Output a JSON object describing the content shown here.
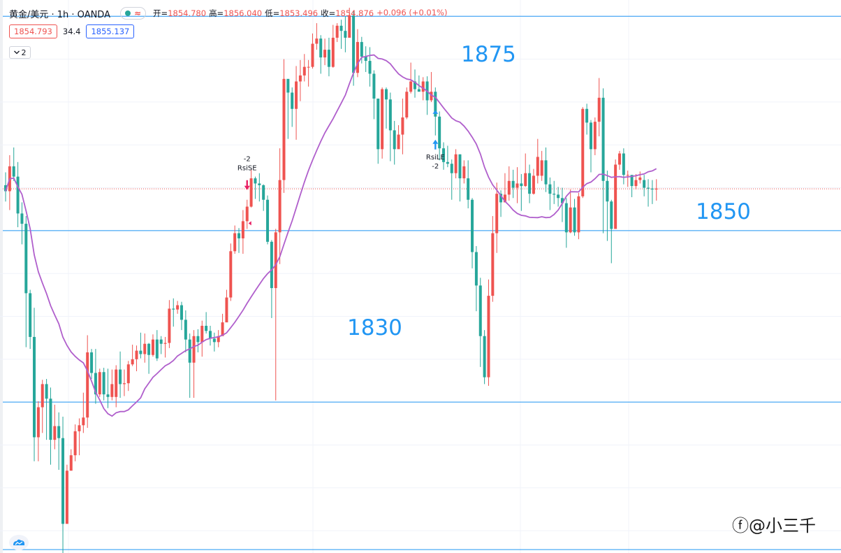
{
  "header": {
    "symbol": "黄金/美元 · 1h · OANDA",
    "status_icon": "wave-icon",
    "open_label": "开=",
    "open": "1854.780",
    "high_label": "高=",
    "high": "1856.040",
    "low_label": "低=",
    "low": "1853.496",
    "close_label": "收=",
    "close": "1854.876",
    "change": "+0.096 (+0.01%)"
  },
  "prices": {
    "sell": "1854.793",
    "spread": "34.4",
    "buy": "1855.137"
  },
  "collapse_count": "2",
  "levels": {
    "l1875": "1875",
    "l1850": "1850",
    "l1830": "1830"
  },
  "watermark": "@小三千",
  "colors": {
    "up": "#ef5350",
    "down": "#26a69a",
    "ma": "#b05fcc",
    "level": "#2196f3"
  },
  "chart_data": {
    "type": "candlestick",
    "ylim": [
      1812.4,
      1876.9
    ],
    "horizontal_levels": [
      1875,
      1850,
      1830
    ],
    "current_price_line": 1854.876,
    "annotations": [
      {
        "text": "-2",
        "text2": "RsiSE",
        "index": 59,
        "direction": "down"
      },
      {
        "text": "RsiLE",
        "text2": "-2",
        "index": 105,
        "direction": "up"
      }
    ],
    "candles": [
      [
        1855.3,
        1854.6,
        1856.8,
        1853.4
      ],
      [
        1854.6,
        1857.5,
        1858.8,
        1852.4
      ],
      [
        1857.5,
        1856.3,
        1859.7,
        1855.8
      ],
      [
        1856.3,
        1852.0,
        1858.0,
        1850.4
      ],
      [
        1852.0,
        1850.8,
        1853.3,
        1848.4
      ],
      [
        1850.8,
        1842.7,
        1851.7,
        1836.4
      ],
      [
        1842.7,
        1837.6,
        1843.1,
        1836.2
      ],
      [
        1837.6,
        1825.9,
        1841.0,
        1823.1
      ],
      [
        1825.9,
        1829.4,
        1830.1,
        1823.1
      ],
      [
        1829.4,
        1832.1,
        1832.6,
        1826.4
      ],
      [
        1832.1,
        1830.4,
        1832.7,
        1825.6
      ],
      [
        1830.4,
        1825.6,
        1831.7,
        1822.7
      ],
      [
        1825.6,
        1827.2,
        1829.7,
        1824.5
      ],
      [
        1827.2,
        1825.8,
        1828.8,
        1822.1
      ],
      [
        1825.8,
        1815.8,
        1828.3,
        1811.0
      ],
      [
        1815.8,
        1822.0,
        1822.7,
        1816.0
      ],
      [
        1822.0,
        1823.8,
        1824.5,
        1822.3
      ],
      [
        1823.8,
        1826.6,
        1827.4,
        1823.1
      ],
      [
        1826.6,
        1827.3,
        1828.1,
        1823.8
      ],
      [
        1827.3,
        1828.2,
        1831.1,
        1826.4
      ],
      [
        1828.2,
        1835.8,
        1837.8,
        1827.0
      ],
      [
        1835.8,
        1833.4,
        1836.2,
        1832.7
      ],
      [
        1833.4,
        1830.9,
        1836.2,
        1829.8
      ],
      [
        1830.9,
        1833.5,
        1833.9,
        1830.6
      ],
      [
        1833.5,
        1830.9,
        1834.0,
        1830.2
      ],
      [
        1830.9,
        1830.6,
        1833.9,
        1829.3
      ],
      [
        1830.6,
        1832.1,
        1833.8,
        1830.2
      ],
      [
        1830.6,
        1833.8,
        1834.3,
        1829.4
      ],
      [
        1833.8,
        1832.1,
        1835.9,
        1830.5
      ],
      [
        1832.1,
        1832.2,
        1833.8,
        1830.7
      ],
      [
        1832.2,
        1834.4,
        1834.8,
        1831.3
      ],
      [
        1834.4,
        1835.0,
        1836.7,
        1834.2
      ],
      [
        1835.0,
        1836.0,
        1836.6,
        1833.6
      ],
      [
        1836.0,
        1835.6,
        1838.1,
        1835.1
      ],
      [
        1835.6,
        1836.8,
        1838.0,
        1834.6
      ],
      [
        1836.8,
        1835.5,
        1836.9,
        1833.3
      ],
      [
        1835.5,
        1837.3,
        1837.9,
        1835.3
      ],
      [
        1837.3,
        1835.1,
        1838.4,
        1834.8
      ],
      [
        1837.3,
        1836.8,
        1837.7,
        1835.6
      ],
      [
        1836.8,
        1836.9,
        1837.6,
        1835.2
      ],
      [
        1836.9,
        1840.9,
        1841.9,
        1836.3
      ],
      [
        1840.9,
        1840.8,
        1842.1,
        1838.8
      ],
      [
        1840.8,
        1841.3,
        1841.8,
        1840.3
      ],
      [
        1841.3,
        1839.6,
        1841.7,
        1838.4
      ],
      [
        1839.6,
        1837.3,
        1840.7,
        1835.8
      ],
      [
        1837.3,
        1834.6,
        1838.0,
        1830.5
      ],
      [
        1834.6,
        1837.7,
        1838.4,
        1830.5
      ],
      [
        1837.7,
        1837.0,
        1838.5,
        1835.8
      ],
      [
        1837.0,
        1838.9,
        1839.5,
        1835.3
      ],
      [
        1838.9,
        1838.3,
        1840.5,
        1838.0
      ],
      [
        1838.3,
        1837.4,
        1838.9,
        1836.6
      ],
      [
        1837.4,
        1837.0,
        1838.1,
        1835.9
      ],
      [
        1837.0,
        1837.7,
        1838.4,
        1836.4
      ],
      [
        1837.7,
        1839.3,
        1840.3,
        1839.0
      ],
      [
        1839.3,
        1842.2,
        1843.1,
        1839.6
      ],
      [
        1842.2,
        1847.6,
        1848.5,
        1841.8
      ],
      [
        1847.6,
        1849.7,
        1850.6,
        1847.3
      ],
      [
        1849.7,
        1849.1,
        1850.3,
        1847.4
      ],
      [
        1849.1,
        1851.1,
        1852.4,
        1847.3
      ],
      [
        1851.1,
        1852.8,
        1853.6,
        1850.2
      ],
      [
        1852.8,
        1856.1,
        1857.1,
        1852.7
      ],
      [
        1856.1,
        1855.5,
        1856.3,
        1853.7
      ],
      [
        1855.5,
        1855.3,
        1856.7,
        1853.4
      ],
      [
        1855.3,
        1853.6,
        1855.4,
        1852.3
      ],
      [
        1853.6,
        1848.7,
        1854.1,
        1848.4
      ],
      [
        1848.7,
        1843.3,
        1848.9,
        1839.8
      ],
      [
        1843.3,
        1849.8,
        1850.2,
        1830.2
      ],
      [
        1849.8,
        1855.9,
        1859.6,
        1846.1
      ],
      [
        1855.9,
        1867.7,
        1870.0,
        1854.4
      ],
      [
        1867.7,
        1866.1,
        1867.1,
        1860.7
      ],
      [
        1866.1,
        1864.2,
        1866.7,
        1862.1
      ],
      [
        1864.2,
        1867.4,
        1869.2,
        1860.6
      ],
      [
        1867.4,
        1868.1,
        1869.9,
        1865.1
      ],
      [
        1868.1,
        1869.1,
        1870.6,
        1867.4
      ],
      [
        1869.1,
        1869.1,
        1869.9,
        1866.8
      ],
      [
        1869.1,
        1871.8,
        1873.0,
        1868.9
      ],
      [
        1871.8,
        1872.4,
        1874.2,
        1871.1
      ],
      [
        1872.4,
        1870.2,
        1872.8,
        1868.3
      ],
      [
        1870.2,
        1871.1,
        1872.4,
        1869.3
      ],
      [
        1871.1,
        1869.1,
        1872.5,
        1868.0
      ],
      [
        1869.1,
        1872.5,
        1874.0,
        1869.0
      ],
      [
        1872.5,
        1873.9,
        1874.2,
        1872.0
      ],
      [
        1873.9,
        1873.3,
        1874.6,
        1871.2
      ],
      [
        1873.3,
        1872.5,
        1875.0,
        1870.8
      ],
      [
        1872.5,
        1875.1,
        1876.0,
        1872.5
      ],
      [
        1875.1,
        1868.4,
        1875.6,
        1866.9
      ],
      [
        1868.4,
        1872.0,
        1873.5,
        1867.9
      ],
      [
        1872.0,
        1870.3,
        1872.6,
        1869.5
      ],
      [
        1870.3,
        1869.8,
        1871.5,
        1868.5
      ],
      [
        1869.8,
        1868.3,
        1871.4,
        1866.8
      ],
      [
        1868.3,
        1865.4,
        1868.7,
        1863.0
      ],
      [
        1865.4,
        1859.5,
        1865.2,
        1857.8
      ],
      [
        1859.5,
        1866.5,
        1866.7,
        1858.4
      ],
      [
        1866.5,
        1865.3,
        1866.7,
        1861.9
      ],
      [
        1865.3,
        1861.7,
        1866.1,
        1858.1
      ],
      [
        1861.7,
        1859.5,
        1862.8,
        1857.7
      ],
      [
        1859.5,
        1861.2,
        1862.3,
        1859.6
      ],
      [
        1861.2,
        1863.2,
        1865.4,
        1858.9
      ],
      [
        1863.2,
        1866.2,
        1866.7,
        1863.0
      ],
      [
        1866.2,
        1867.4,
        1869.6,
        1866.0
      ],
      [
        1867.4,
        1866.5,
        1868.8,
        1865.5
      ],
      [
        1866.5,
        1866.2,
        1868.1,
        1866.5
      ],
      [
        1866.2,
        1867.4,
        1867.9,
        1865.2
      ],
      [
        1867.4,
        1865.2,
        1868.0,
        1863.5
      ],
      [
        1865.2,
        1866.2,
        1868.5,
        1865.0
      ],
      [
        1866.2,
        1863.3,
        1866.7,
        1861.1
      ],
      [
        1863.3,
        1859.6,
        1863.9,
        1858.2
      ],
      [
        1859.6,
        1858.0,
        1860.3,
        1857.1
      ],
      [
        1858.0,
        1857.8,
        1859.9,
        1857.4
      ],
      [
        1857.8,
        1856.7,
        1858.3,
        1853.6
      ],
      [
        1856.7,
        1858.9,
        1859.5,
        1856.1
      ],
      [
        1858.9,
        1856.1,
        1858.9,
        1853.4
      ],
      [
        1856.1,
        1857.5,
        1858.2,
        1855.5
      ],
      [
        1856.1,
        1853.6,
        1858.2,
        1852.6
      ],
      [
        1853.6,
        1847.5,
        1853.8,
        1845.6
      ],
      [
        1847.5,
        1843.6,
        1848.2,
        1840.6
      ],
      [
        1843.6,
        1837.7,
        1844.5,
        1834.1
      ],
      [
        1837.7,
        1832.9,
        1838.4,
        1832.1
      ],
      [
        1832.9,
        1842.4,
        1844.3,
        1831.9
      ],
      [
        1842.4,
        1849.7,
        1851.7,
        1841.7
      ],
      [
        1849.7,
        1854.3,
        1855.6,
        1847.4
      ],
      [
        1854.3,
        1853.3,
        1854.7,
        1851.6
      ],
      [
        1853.3,
        1854.2,
        1856.7,
        1853.3
      ],
      [
        1854.2,
        1855.8,
        1857.5,
        1853.5
      ],
      [
        1855.8,
        1855.0,
        1857.1,
        1853.8
      ],
      [
        1855.0,
        1855.5,
        1857.4,
        1853.2
      ],
      [
        1855.5,
        1855.2,
        1856.6,
        1852.3
      ],
      [
        1855.2,
        1856.7,
        1859.0,
        1855.1
      ],
      [
        1856.7,
        1854.3,
        1857.7,
        1853.2
      ],
      [
        1854.3,
        1856.4,
        1857.2,
        1854.2
      ],
      [
        1856.4,
        1858.6,
        1860.7,
        1855.5
      ],
      [
        1856.4,
        1858.2,
        1859.3,
        1855.8
      ],
      [
        1858.2,
        1855.4,
        1859.7,
        1854.5
      ],
      [
        1855.4,
        1854.3,
        1856.2,
        1852.4
      ],
      [
        1854.3,
        1854.2,
        1855.8,
        1853.1
      ],
      [
        1854.2,
        1853.8,
        1855.1,
        1852.8
      ],
      [
        1853.8,
        1853.2,
        1855.0,
        1851.0
      ],
      [
        1853.2,
        1849.8,
        1853.8,
        1848.0
      ],
      [
        1849.8,
        1852.7,
        1854.8,
        1849.7
      ],
      [
        1852.7,
        1849.8,
        1853.7,
        1849.4
      ],
      [
        1849.8,
        1854.0,
        1854.4,
        1849.0
      ],
      [
        1854.0,
        1864.2,
        1864.4,
        1853.8
      ],
      [
        1864.2,
        1862.6,
        1864.8,
        1861.2
      ],
      [
        1862.6,
        1859.5,
        1862.9,
        1856.8
      ],
      [
        1859.5,
        1862.7,
        1863.2,
        1858.8
      ],
      [
        1862.7,
        1865.5,
        1867.8,
        1861.0
      ],
      [
        1865.5,
        1855.8,
        1866.6,
        1849.7
      ],
      [
        1855.8,
        1853.4,
        1857.0,
        1848.8
      ],
      [
        1853.4,
        1850.2,
        1853.6,
        1846.2
      ],
      [
        1850.2,
        1857.7,
        1858.3,
        1850.2
      ],
      [
        1857.7,
        1859.0,
        1859.3,
        1857.1
      ],
      [
        1859.0,
        1856.5,
        1859.6,
        1855.4
      ],
      [
        1856.5,
        1856.5,
        1857.0,
        1855.1
      ],
      [
        1856.5,
        1855.2,
        1856.4,
        1853.9
      ],
      [
        1855.2,
        1855.9,
        1856.6,
        1854.8
      ],
      [
        1855.9,
        1856.2,
        1856.9,
        1855.5
      ],
      [
        1855.9,
        1855.0,
        1856.5,
        1854.0
      ],
      [
        1855.0,
        1854.9,
        1856.0,
        1852.8
      ],
      [
        1854.9,
        1854.8,
        1855.9,
        1853.1
      ],
      [
        1854.8,
        1854.9,
        1856.0,
        1853.5
      ]
    ]
  }
}
